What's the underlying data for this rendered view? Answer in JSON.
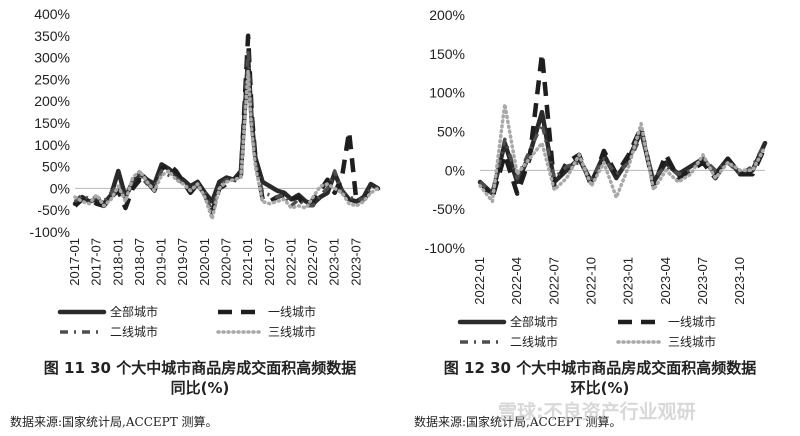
{
  "chart_data": [
    {
      "type": "line",
      "x_ticks": [
        "2017-01",
        "2017-07",
        "2018-01",
        "2018-07",
        "2019-01",
        "2019-07",
        "2020-01",
        "2020-07",
        "2021-01",
        "2021-07",
        "2022-01",
        "2022-07",
        "2023-01",
        "2023-07"
      ],
      "ylim": [
        -100,
        400
      ],
      "y_ticks": [
        "400%",
        "350%",
        "300%",
        "250%",
        "200%",
        "150%",
        "100%",
        "50%",
        "0%",
        "-50%",
        "-100%"
      ],
      "legend": [
        "全部城市",
        "一线城市",
        "二线城市",
        "三线城市"
      ],
      "caption_line1": "图 11  30 个大中城市商品房成交面积高频数据",
      "caption_line2": "同比(%)",
      "source": "数据来源:国家统计局,ACCEPT 测算。",
      "x": [
        "2017-01",
        "2017-03",
        "2017-05",
        "2017-07",
        "2017-09",
        "2017-11",
        "2018-01",
        "2018-03",
        "2018-05",
        "2018-07",
        "2018-09",
        "2018-11",
        "2019-01",
        "2019-03",
        "2019-05",
        "2019-07",
        "2019-09",
        "2019-11",
        "2020-01",
        "2020-03",
        "2020-05",
        "2020-07",
        "2020-09",
        "2020-11",
        "2021-01",
        "2021-02",
        "2021-03",
        "2021-05",
        "2021-07",
        "2021-09",
        "2021-11",
        "2022-01",
        "2022-03",
        "2022-05",
        "2022-07",
        "2022-09",
        "2022-11",
        "2023-01",
        "2023-03",
        "2023-05",
        "2023-07",
        "2023-09",
        "2023-11",
        "2024-01"
      ],
      "series": [
        {
          "name": "全部城市",
          "values": [
            -35,
            -20,
            -30,
            -25,
            -35,
            -15,
            40,
            -20,
            15,
            35,
            20,
            10,
            55,
            45,
            30,
            20,
            5,
            15,
            -10,
            -30,
            15,
            25,
            20,
            40,
            300,
            150,
            70,
            15,
            5,
            -5,
            -10,
            -25,
            -15,
            -30,
            -35,
            -20,
            -10,
            35,
            -5,
            -25,
            -30,
            -20,
            10,
            0
          ]
        },
        {
          "name": "一线城市",
          "values": [
            -40,
            -25,
            -25,
            -35,
            -40,
            -20,
            -5,
            -45,
            0,
            20,
            15,
            -5,
            45,
            55,
            40,
            15,
            -10,
            10,
            -15,
            -55,
            0,
            10,
            20,
            30,
            350,
            170,
            70,
            -25,
            -30,
            -20,
            -15,
            -25,
            -20,
            -45,
            -25,
            -5,
            20,
            -10,
            25,
            130,
            -30,
            -25,
            -5,
            0
          ]
        },
        {
          "name": "二线城市",
          "values": [
            -30,
            -15,
            -25,
            -20,
            -30,
            -10,
            10,
            -25,
            20,
            30,
            10,
            5,
            40,
            30,
            25,
            10,
            0,
            5,
            -10,
            -55,
            5,
            20,
            15,
            30,
            320,
            160,
            60,
            -10,
            -15,
            -20,
            -15,
            -40,
            -25,
            -40,
            -40,
            -15,
            0,
            40,
            -10,
            -20,
            -25,
            -25,
            0,
            0
          ]
        },
        {
          "name": "三线城市",
          "values": [
            -20,
            -30,
            -35,
            -15,
            -40,
            -25,
            5,
            -30,
            25,
            40,
            15,
            -5,
            30,
            40,
            20,
            10,
            -5,
            10,
            -20,
            -70,
            0,
            15,
            20,
            25,
            270,
            130,
            50,
            -30,
            -35,
            -30,
            -25,
            -45,
            -40,
            -45,
            -20,
            5,
            10,
            0,
            -10,
            -35,
            -40,
            -30,
            -10,
            0
          ]
        }
      ]
    },
    {
      "type": "line",
      "x_ticks": [
        "2022-01",
        "2022-04",
        "2022-07",
        "2022-10",
        "2023-01",
        "2023-04",
        "2023-07",
        "2023-10"
      ],
      "ylim": [
        -100,
        200
      ],
      "y_ticks": [
        "200%",
        "150%",
        "100%",
        "50%",
        "0%",
        "-50%",
        "-100%"
      ],
      "legend": [
        "全部城市",
        "一线城市",
        "二线城市",
        "三线城市"
      ],
      "caption_line1": "图 12  30 个大中城市商品房成交面积高频数据",
      "caption_line2": "环比(%)",
      "source": "数据来源:国家统计局,ACCEPT 测算。",
      "x": [
        "2022-01",
        "2022-02",
        "2022-03",
        "2022-04",
        "2022-05",
        "2022-06",
        "2022-07",
        "2022-08",
        "2022-09",
        "2022-10",
        "2022-11",
        "2022-12",
        "2023-01",
        "2023-02",
        "2023-03",
        "2023-04",
        "2023-05",
        "2023-06",
        "2023-07",
        "2023-08",
        "2023-09",
        "2023-10",
        "2023-11",
        "2023-12"
      ],
      "series": [
        {
          "name": "全部城市",
          "values": [
            -15,
            -30,
            35,
            -15,
            20,
            75,
            -15,
            0,
            15,
            -15,
            20,
            -10,
            15,
            50,
            -15,
            10,
            -5,
            5,
            15,
            -5,
            15,
            -5,
            0,
            35
          ]
        },
        {
          "name": "一线城市",
          "values": [
            -15,
            -35,
            20,
            -30,
            15,
            150,
            -20,
            10,
            20,
            -20,
            25,
            -5,
            20,
            55,
            -20,
            20,
            -10,
            0,
            10,
            -10,
            15,
            -5,
            -5,
            30
          ]
        },
        {
          "name": "二线城市",
          "values": [
            -15,
            -30,
            40,
            -10,
            25,
            60,
            -10,
            5,
            10,
            -10,
            15,
            -5,
            10,
            45,
            -10,
            5,
            -5,
            0,
            15,
            0,
            10,
            -5,
            5,
            35
          ]
        },
        {
          "name": "三线城市",
          "values": [
            -20,
            -40,
            85,
            -5,
            15,
            35,
            -25,
            -10,
            20,
            -20,
            10,
            -35,
            5,
            60,
            -25,
            0,
            -15,
            -5,
            20,
            -10,
            10,
            0,
            0,
            30
          ]
        }
      ]
    }
  ],
  "watermark": "雪球:不良资产行业观研"
}
